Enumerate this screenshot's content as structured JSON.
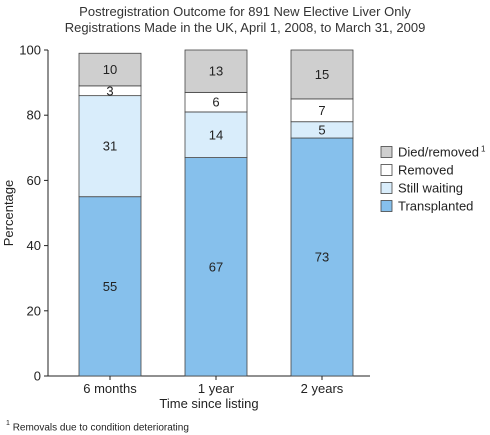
{
  "chart_data": {
    "type": "bar",
    "stacked": true,
    "title_lines": [
      "Postregistration Outcome for 891 New Elective Liver Only",
      "Registrations Made in the UK, April 1, 2008, to March 31, 2009"
    ],
    "xlabel": "Time since listing",
    "ylabel": "Percentage",
    "ylim": [
      0,
      100
    ],
    "yticks": [
      0,
      20,
      40,
      60,
      80,
      100
    ],
    "categories": [
      "6 months",
      "1 year",
      "2 years"
    ],
    "series": [
      {
        "name": "Transplanted",
        "values": [
          55,
          67,
          73
        ],
        "color": "#86c0ec"
      },
      {
        "name": "Still waiting",
        "values": [
          31,
          14,
          5
        ],
        "color": "#d9edfb"
      },
      {
        "name": "Removed",
        "values": [
          3,
          6,
          7
        ],
        "color": "#ffffff"
      },
      {
        "name": "Died/removed",
        "legend_sup": "1",
        "values": [
          10,
          13,
          15
        ],
        "color": "#cfcfcf"
      }
    ],
    "legend_position": "right",
    "grid": false
  },
  "footnote": {
    "marker": "1",
    "text": "Removals due to condition deteriorating"
  }
}
